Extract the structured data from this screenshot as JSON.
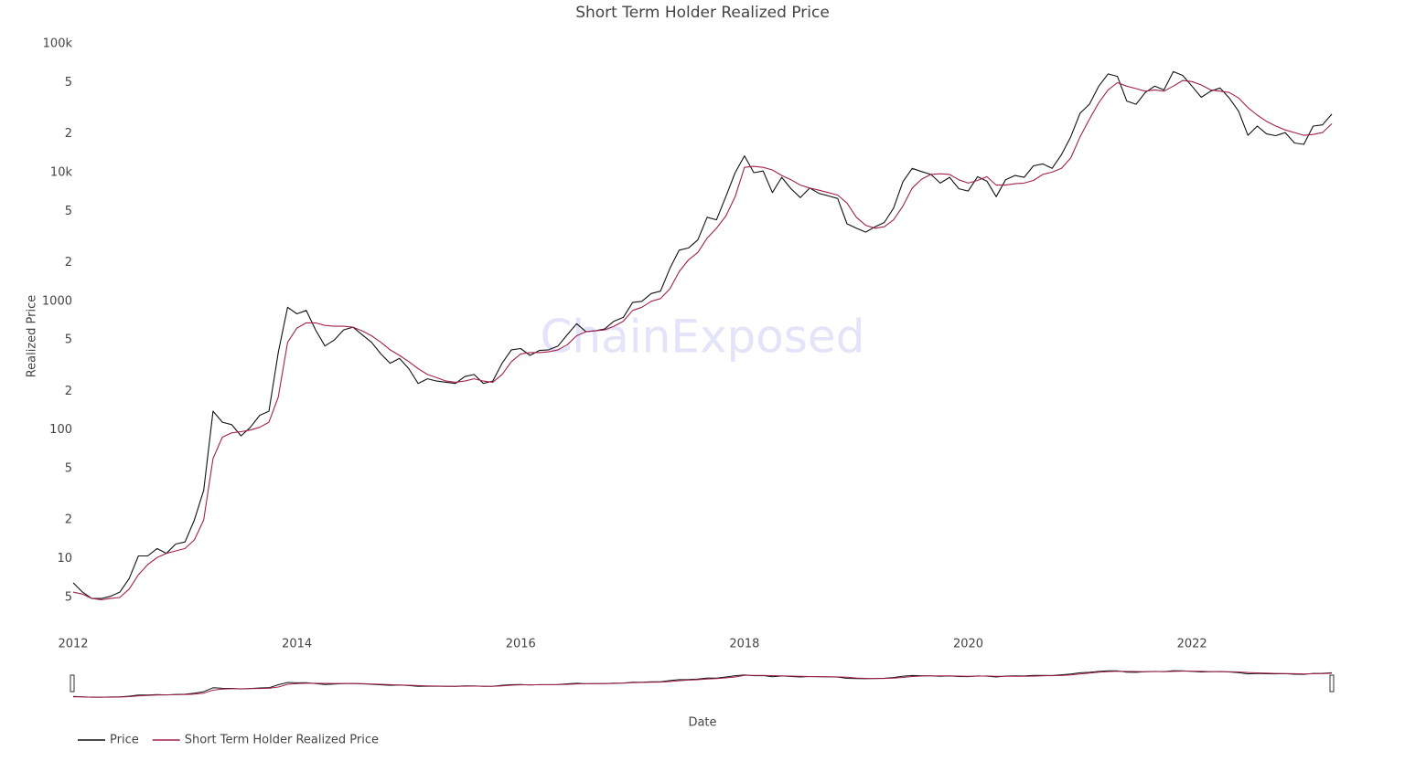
{
  "chart_data": {
    "type": "line",
    "title": "Short Term Holder Realized Price",
    "watermark": "ChainExposed",
    "xlabel": "Date",
    "ylabel": "Realized Price",
    "log_y": true,
    "grid": false,
    "legend": "bottom-left",
    "xlim": [
      "2012-01",
      "2023-04"
    ],
    "xticks": [
      "2012",
      "2014",
      "2016",
      "2018",
      "2020",
      "2022"
    ],
    "ylim": [
      3.6,
      120000
    ],
    "yticks": [
      5,
      10,
      {
        "value": 20,
        "label": "2"
      },
      {
        "value": 50,
        "label": "5"
      },
      100,
      {
        "value": 200,
        "label": "2"
      },
      {
        "value": 500,
        "label": "5"
      },
      1000,
      {
        "value": 2000,
        "label": "2"
      },
      {
        "value": 5000,
        "label": "5"
      },
      {
        "value": 10000,
        "label": "10k"
      },
      {
        "value": 20000,
        "label": "2"
      },
      {
        "value": 50000,
        "label": "5"
      },
      {
        "value": 100000,
        "label": "100k"
      }
    ],
    "x": [
      "2012-01",
      "2012-02",
      "2012-03",
      "2012-04",
      "2012-05",
      "2012-06",
      "2012-07",
      "2012-08",
      "2012-09",
      "2012-10",
      "2012-11",
      "2012-12",
      "2013-01",
      "2013-02",
      "2013-03",
      "2013-04",
      "2013-05",
      "2013-06",
      "2013-07",
      "2013-08",
      "2013-09",
      "2013-10",
      "2013-11",
      "2013-12",
      "2014-01",
      "2014-02",
      "2014-03",
      "2014-04",
      "2014-05",
      "2014-06",
      "2014-07",
      "2014-08",
      "2014-09",
      "2014-10",
      "2014-11",
      "2014-12",
      "2015-01",
      "2015-02",
      "2015-03",
      "2015-04",
      "2015-05",
      "2015-06",
      "2015-07",
      "2015-08",
      "2015-09",
      "2015-10",
      "2015-11",
      "2015-12",
      "2016-01",
      "2016-02",
      "2016-03",
      "2016-04",
      "2016-05",
      "2016-06",
      "2016-07",
      "2016-08",
      "2016-09",
      "2016-10",
      "2016-11",
      "2016-12",
      "2017-01",
      "2017-02",
      "2017-03",
      "2017-04",
      "2017-05",
      "2017-06",
      "2017-07",
      "2017-08",
      "2017-09",
      "2017-10",
      "2017-11",
      "2017-12",
      "2018-01",
      "2018-02",
      "2018-03",
      "2018-04",
      "2018-05",
      "2018-06",
      "2018-07",
      "2018-08",
      "2018-09",
      "2018-10",
      "2018-11",
      "2018-12",
      "2019-01",
      "2019-02",
      "2019-03",
      "2019-04",
      "2019-05",
      "2019-06",
      "2019-07",
      "2019-08",
      "2019-09",
      "2019-10",
      "2019-11",
      "2019-12",
      "2020-01",
      "2020-02",
      "2020-03",
      "2020-04",
      "2020-05",
      "2020-06",
      "2020-07",
      "2020-08",
      "2020-09",
      "2020-10",
      "2020-11",
      "2020-12",
      "2021-01",
      "2021-02",
      "2021-03",
      "2021-04",
      "2021-05",
      "2021-06",
      "2021-07",
      "2021-08",
      "2021-09",
      "2021-10",
      "2021-11",
      "2021-12",
      "2022-01",
      "2022-02",
      "2022-03",
      "2022-04",
      "2022-05",
      "2022-06",
      "2022-07",
      "2022-08",
      "2022-09",
      "2022-10",
      "2022-11",
      "2022-12",
      "2023-01",
      "2023-02",
      "2023-03",
      "2023-04"
    ],
    "series": [
      {
        "name": "Price",
        "color": "#111111",
        "values": [
          6.5,
          5.5,
          4.9,
          4.9,
          5.1,
          5.5,
          7.0,
          10.5,
          10.5,
          12,
          11,
          13,
          13.5,
          20,
          34,
          140,
          115,
          110,
          90,
          105,
          130,
          140,
          400,
          900,
          800,
          850,
          600,
          450,
          500,
          600,
          630,
          550,
          480,
          390,
          330,
          360,
          300,
          230,
          250,
          240,
          235,
          230,
          260,
          270,
          230,
          240,
          330,
          420,
          430,
          380,
          415,
          420,
          450,
          550,
          670,
          580,
          590,
          610,
          700,
          750,
          980,
          1000,
          1150,
          1200,
          1800,
          2500,
          2600,
          3000,
          4500,
          4300,
          6500,
          10000,
          13500,
          10000,
          10300,
          7000,
          9200,
          7500,
          6400,
          7600,
          6900,
          6600,
          6300,
          4000,
          3700,
          3450,
          3800,
          4100,
          5300,
          8500,
          10800,
          10200,
          9700,
          8300,
          9200,
          7500,
          7200,
          9300,
          8600,
          6500,
          8800,
          9500,
          9200,
          11300,
          11700,
          10800,
          13800,
          19000,
          29000,
          34000,
          47000,
          58500,
          56000,
          36000,
          34000,
          42000,
          47000,
          44000,
          61000,
          57000,
          47000,
          38500,
          43000,
          45500,
          38000,
          30000,
          19500,
          23000,
          20000,
          19400,
          20500,
          17000,
          16600,
          23000,
          23500,
          28500
        ]
      },
      {
        "name": "Short Term Holder Realized Price",
        "color": "#a3204e",
        "values": [
          5.5,
          5.3,
          4.9,
          4.8,
          4.9,
          5.0,
          5.8,
          7.5,
          9.0,
          10.2,
          11,
          11.5,
          12,
          14,
          20,
          60,
          88,
          95,
          97,
          100,
          105,
          115,
          180,
          480,
          620,
          680,
          680,
          650,
          640,
          640,
          630,
          590,
          540,
          480,
          420,
          380,
          340,
          300,
          270,
          255,
          240,
          235,
          240,
          250,
          240,
          235,
          270,
          340,
          390,
          400,
          400,
          405,
          420,
          460,
          540,
          580,
          590,
          600,
          640,
          700,
          850,
          900,
          1000,
          1050,
          1250,
          1700,
          2100,
          2400,
          3100,
          3700,
          4600,
          6500,
          11000,
          11200,
          11000,
          10500,
          9500,
          8800,
          8000,
          7600,
          7300,
          7000,
          6700,
          5800,
          4500,
          3900,
          3700,
          3800,
          4300,
          5500,
          7600,
          8900,
          9700,
          9800,
          9700,
          8800,
          8300,
          8700,
          9300,
          8000,
          8000,
          8200,
          8300,
          8700,
          9700,
          10100,
          10800,
          13000,
          19000,
          26000,
          35000,
          44000,
          50000,
          47000,
          45000,
          43000,
          44000,
          43000,
          47000,
          52000,
          51000,
          48000,
          44000,
          43000,
          42000,
          38000,
          32000,
          28000,
          25000,
          23000,
          21500,
          20500,
          19500,
          19800,
          20500,
          24000
        ]
      }
    ]
  }
}
